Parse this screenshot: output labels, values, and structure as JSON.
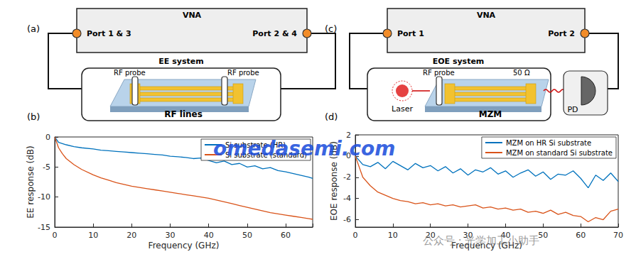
{
  "chart_data": [
    {
      "type": "line",
      "panel": "(b)",
      "x_label": "Frequency (GHz)",
      "y_label": "EE response (dB)",
      "xlim": [
        0,
        67
      ],
      "xticks": [
        0,
        10,
        20,
        30,
        40,
        50,
        60
      ],
      "ylim": [
        -15,
        0
      ],
      "yticks": [
        -15,
        -10,
        -5,
        0
      ],
      "grid": false,
      "legend": "upper right",
      "x": [
        0,
        1,
        2,
        3,
        5,
        7,
        10,
        12,
        14,
        16,
        18,
        20,
        22,
        24,
        26,
        28,
        30,
        32,
        34,
        36,
        38,
        40,
        42,
        44,
        46,
        48,
        50,
        52,
        54,
        56,
        58,
        60,
        62,
        64,
        66,
        67
      ],
      "series": [
        {
          "name": "Si substrate (HR)",
          "color": "#0072bd",
          "values": [
            0,
            -0.9,
            -1.1,
            -1.3,
            -1.6,
            -1.8,
            -2.0,
            -2.2,
            -2.3,
            -2.4,
            -2.5,
            -2.6,
            -2.7,
            -2.8,
            -2.9,
            -3.0,
            -3.2,
            -3.3,
            -3.4,
            -3.6,
            -3.5,
            -3.9,
            -4.3,
            -4.0,
            -4.6,
            -4.4,
            -5.0,
            -4.8,
            -5.3,
            -5.1,
            -5.6,
            -5.8,
            -6.1,
            -6.4,
            -6.7,
            -6.9
          ]
        },
        {
          "name": "Si substrate (standard)",
          "color": "#d95319",
          "values": [
            0,
            -1.8,
            -2.8,
            -3.6,
            -4.6,
            -5.4,
            -6.3,
            -6.8,
            -7.2,
            -7.6,
            -7.9,
            -8.2,
            -8.4,
            -8.6,
            -8.8,
            -9.0,
            -9.2,
            -9.4,
            -9.6,
            -9.8,
            -10.0,
            -10.2,
            -10.5,
            -10.8,
            -11.1,
            -11.4,
            -11.7,
            -12.0,
            -12.3,
            -12.6,
            -12.8,
            -13.0,
            -13.2,
            -13.4,
            -13.6,
            -13.7
          ]
        }
      ]
    },
    {
      "type": "line",
      "panel": "(d)",
      "x_label": "Frequency (GHz)",
      "y_label": "EOE response (dB)",
      "xlim": [
        0,
        70
      ],
      "xticks": [
        0,
        10,
        20,
        30,
        40,
        50,
        60,
        70
      ],
      "ylim": [
        -6.7,
        2
      ],
      "yticks": [
        -6,
        -4,
        -2,
        0,
        2
      ],
      "grid": false,
      "legend": "upper right",
      "x": [
        0,
        2,
        4,
        6,
        8,
        10,
        12,
        14,
        16,
        18,
        20,
        22,
        24,
        26,
        28,
        30,
        32,
        34,
        36,
        38,
        40,
        42,
        44,
        46,
        48,
        50,
        52,
        54,
        56,
        58,
        60,
        62,
        64,
        66,
        68,
        70
      ],
      "series": [
        {
          "name": "MZM on HR Si substrate",
          "color": "#0072bd",
          "values": [
            0,
            -0.8,
            -1.0,
            -0.6,
            -1.2,
            -0.5,
            -0.9,
            -1.3,
            -0.7,
            -1.1,
            -0.9,
            -1.4,
            -1.0,
            -1.6,
            -1.2,
            -1.8,
            -1.3,
            -1.5,
            -1.1,
            -1.7,
            -1.4,
            -2.0,
            -1.6,
            -1.3,
            -1.9,
            -1.5,
            -2.2,
            -1.7,
            -1.8,
            -1.4,
            -2.1,
            -3.0,
            -1.8,
            -2.3,
            -1.6,
            -2.4
          ]
        },
        {
          "name": "MZM on standard Si substrate",
          "color": "#d95319",
          "values": [
            0,
            -2.0,
            -2.8,
            -3.4,
            -3.7,
            -4.0,
            -4.2,
            -4.3,
            -4.5,
            -4.4,
            -4.6,
            -4.5,
            -4.7,
            -4.6,
            -4.8,
            -4.7,
            -4.6,
            -4.9,
            -4.8,
            -5.0,
            -4.9,
            -5.1,
            -5.0,
            -5.3,
            -5.2,
            -5.4,
            -5.1,
            -5.5,
            -5.3,
            -5.6,
            -5.7,
            -6.2,
            -5.8,
            -6.0,
            -5.2,
            -5.0
          ]
        }
      ]
    }
  ],
  "diagrams": [
    {
      "panel": "(a)",
      "instrument": "VNA",
      "ports": [
        "Port 1 & 3",
        "Port 2 & 4"
      ],
      "system": "EE system",
      "probes": [
        "RF probe",
        "RF probe"
      ],
      "device": "RF lines"
    },
    {
      "panel": "(c)",
      "instrument": "VNA",
      "ports": [
        "Port 1",
        "Port 2"
      ],
      "system": "EOE system",
      "probe": "RF probe",
      "termination": "50 Ω",
      "source": "Laser",
      "device": "MZM",
      "detector": "PD"
    }
  ],
  "watermarks": [
    "omedasemi.com",
    "公众号 · 光学加工小助手"
  ]
}
